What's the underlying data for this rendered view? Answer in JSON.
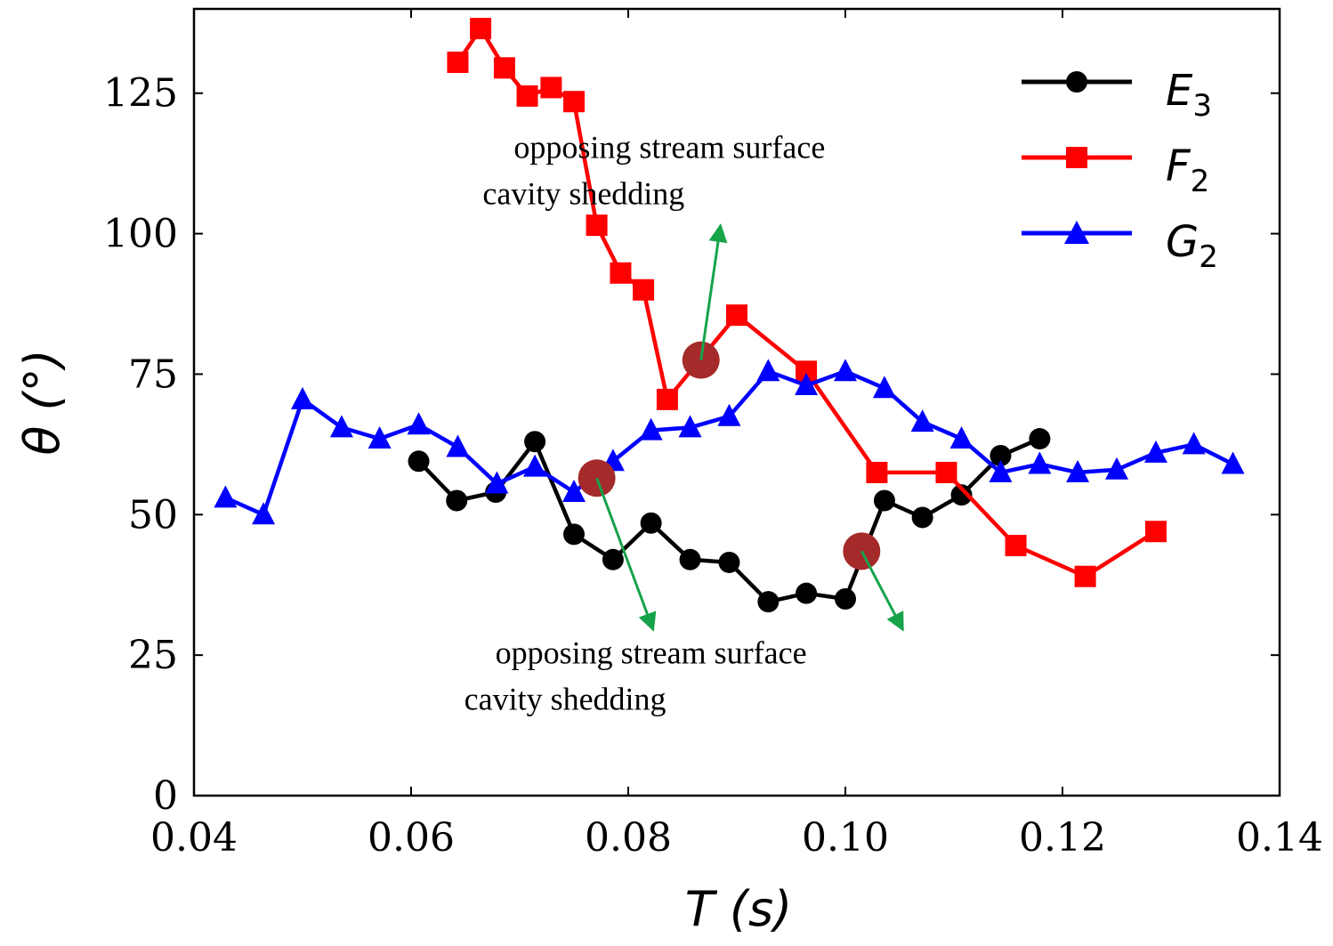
{
  "chart_data": {
    "type": "line",
    "title": "",
    "xlabel": "T (s)",
    "ylabel": "θ (°)",
    "xlim": [
      0.04,
      0.14
    ],
    "ylim": [
      0,
      140
    ],
    "xticks": [
      0.04,
      0.06,
      0.08,
      0.1,
      0.12,
      0.14
    ],
    "xtick_labels": [
      "0.04",
      "0.06",
      "0.08",
      "0.10",
      "0.12",
      "0.14"
    ],
    "yticks": [
      0,
      25,
      50,
      75,
      100,
      125
    ],
    "ytick_labels": [
      "0",
      "25",
      "50",
      "75",
      "100",
      "125"
    ],
    "grid": false,
    "legend_position": "top-right",
    "series": [
      {
        "name": "E3",
        "label_main": "E",
        "label_sub": "3",
        "color": "#000000",
        "marker": "circle",
        "x": [
          0.0607,
          0.0642,
          0.0678,
          0.0714,
          0.075,
          0.0786,
          0.0821,
          0.0857,
          0.0893,
          0.0929,
          0.0964,
          0.1,
          0.1036,
          0.1071,
          0.1107,
          0.1143,
          0.1179
        ],
        "y": [
          59.5,
          52.5,
          54.0,
          63.0,
          46.5,
          42.0,
          48.5,
          42.0,
          41.5,
          34.5,
          36.0,
          35.0,
          52.5,
          49.5,
          53.5,
          60.5,
          63.5
        ]
      },
      {
        "name": "F2",
        "label_main": "F",
        "label_sub": "2",
        "color": "#ff0000",
        "marker": "square",
        "x": [
          0.0643,
          0.0664,
          0.0686,
          0.0707,
          0.0729,
          0.075,
          0.0771,
          0.0793,
          0.0814,
          0.0836,
          0.09,
          0.0964,
          0.1029,
          0.1093,
          0.1157,
          0.1221,
          0.1286
        ],
        "y": [
          130.5,
          136.5,
          129.5,
          124.5,
          126.0,
          123.5,
          101.5,
          93.0,
          90.0,
          70.5,
          85.5,
          75.5,
          57.5,
          57.5,
          44.5,
          39.0,
          47.0
        ]
      },
      {
        "name": "G2",
        "label_main": "G",
        "label_sub": "2",
        "color": "#0000ff",
        "marker": "triangle",
        "x": [
          0.0429,
          0.0464,
          0.05,
          0.0536,
          0.0571,
          0.0607,
          0.0643,
          0.0679,
          0.0714,
          0.075,
          0.0786,
          0.0821,
          0.0857,
          0.0893,
          0.0929,
          0.0964,
          0.1,
          0.1036,
          0.1071,
          0.1107,
          0.1143,
          0.1179,
          0.1214,
          0.125,
          0.1286,
          0.1321,
          0.1357
        ],
        "y": [
          53.0,
          50.0,
          70.5,
          65.5,
          63.5,
          66.0,
          62.0,
          55.5,
          58.5,
          54.0,
          59.5,
          65.0,
          65.5,
          67.5,
          75.5,
          73.0,
          75.5,
          72.5,
          66.5,
          63.5,
          57.5,
          59.0,
          57.5,
          58.0,
          61.0,
          62.5,
          59.0
        ]
      }
    ],
    "highlight_points": [
      {
        "x": 0.0867,
        "y": 77.5
      },
      {
        "x": 0.0771,
        "y": 56.5
      },
      {
        "x": 0.1015,
        "y": 43.5
      }
    ],
    "highlight_color": "#a52a2a",
    "arrow_color": "#16a34a",
    "annotations": [
      {
        "lines": [
          "opposing stream surface",
          "cavity shedding"
        ],
        "text_at": [
          0.0838,
          113.5
        ],
        "arrows": [
          {
            "from": [
              0.0867,
              77.5
            ],
            "to": [
              0.0885,
              101.5
            ]
          }
        ]
      },
      {
        "lines": [
          "opposing stream surface",
          "cavity shedding"
        ],
        "text_at": [
          0.0821,
          23.5
        ],
        "arrows": [
          {
            "from": [
              0.0771,
              56.5
            ],
            "to": [
              0.0823,
              29.5
            ]
          },
          {
            "from": [
              0.1015,
              43.5
            ],
            "to": [
              0.1053,
              29.5
            ]
          }
        ]
      }
    ]
  }
}
